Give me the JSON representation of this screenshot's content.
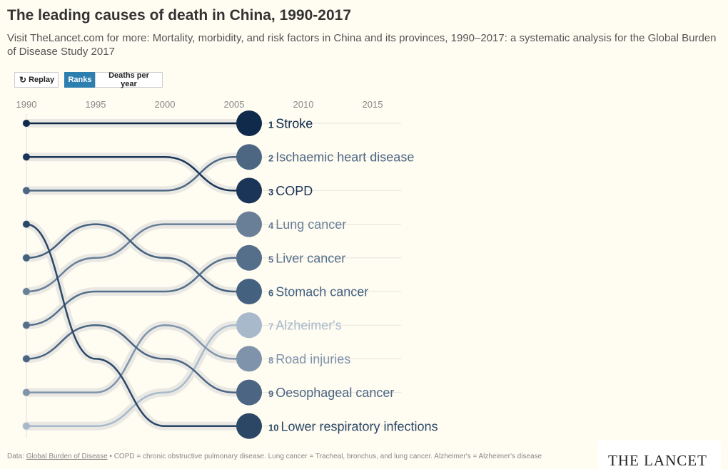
{
  "title": "The leading causes of death in China, 1990-2017",
  "subtitle": "Visit TheLancet.com for more: Mortality, morbidity, and risk factors in China and its provinces, 1990–2017: a systematic analysis for the Global Burden of Disease Study 2017",
  "controls": {
    "replay_label": "Replay",
    "ranks_label": "Ranks",
    "deaths_label": "Deaths per year",
    "active": "ranks"
  },
  "colors": {
    "background": "#fffcf2",
    "button_active": "#2d7fb0",
    "track": "#e9e8e3"
  },
  "footer": {
    "data_prefix": "Data: ",
    "source_link": "Global Burden of Disease",
    "notes": " • COPD = chronic obstructive pulmonary disease. Lung cancer = Tracheal, bronchus, and lung cancer. Alzheimer's = Alzheimer's disease"
  },
  "logo_text": "THE LANCET",
  "chart_data": {
    "type": "line",
    "subtype": "bump",
    "x_ticks": [
      1990,
      1995,
      2000,
      2005,
      2010,
      2015
    ],
    "x_range": [
      1990,
      2017
    ],
    "current_year": 2005,
    "y_range_rank": [
      1,
      10
    ],
    "series": [
      {
        "name": "Stroke",
        "rank_now": 1,
        "color": "#0f2a4a",
        "ranks": {
          "1990": 1,
          "1995": 1,
          "2000": 1,
          "2005": 1
        }
      },
      {
        "name": "Ischaemic heart disease",
        "rank_now": 2,
        "color": "#4d6782",
        "ranks": {
          "1990": 3,
          "1995": 3,
          "2000": 3,
          "2005": 2
        }
      },
      {
        "name": "COPD",
        "rank_now": 3,
        "color": "#1b3558",
        "ranks": {
          "1990": 2,
          "1995": 2,
          "2000": 2,
          "2005": 3
        }
      },
      {
        "name": "Lung cancer",
        "rank_now": 4,
        "color": "#697f98",
        "ranks": {
          "1990": 6,
          "1995": 5,
          "2000": 4,
          "2005": 4
        }
      },
      {
        "name": "Liver cancer",
        "rank_now": 5,
        "color": "#556f8b",
        "ranks": {
          "1990": 7,
          "1995": 6,
          "2000": 6,
          "2005": 5
        }
      },
      {
        "name": "Stomach cancer",
        "rank_now": 6,
        "color": "#44617f",
        "ranks": {
          "1990": 5,
          "1995": 4,
          "2000": 5,
          "2005": 6
        }
      },
      {
        "name": "Alzheimer's",
        "rank_now": 7,
        "color": "#a8b9cb",
        "ranks": {
          "1990": 10,
          "1995": 10,
          "2000": 9,
          "2005": 7
        }
      },
      {
        "name": "Road injuries",
        "rank_now": 8,
        "color": "#7f94ab",
        "ranks": {
          "1990": 9,
          "1995": 9,
          "2000": 7,
          "2005": 8
        }
      },
      {
        "name": "Oesophageal cancer",
        "rank_now": 9,
        "color": "#4b6582",
        "ranks": {
          "1990": 8,
          "1995": 7,
          "2000": 8,
          "2005": 9
        }
      },
      {
        "name": "Lower respiratory infections",
        "rank_now": 10,
        "color": "#2c4766",
        "ranks": {
          "1990": 4,
          "1995": 8,
          "2000": 10,
          "2005": 10
        }
      }
    ]
  }
}
